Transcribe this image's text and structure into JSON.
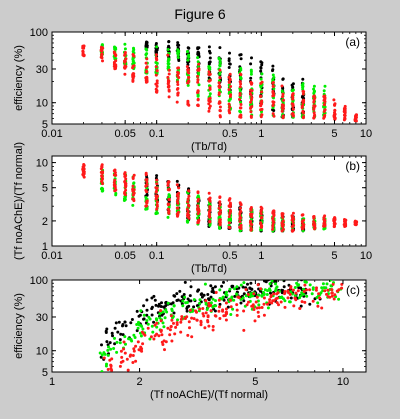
{
  "figure": {
    "title": "Figure 6"
  },
  "colors": {
    "black": "#000000",
    "green": "#00ee00",
    "red": "#ff1a1a",
    "background": "#cccccc",
    "axes_bg": "#ffffff"
  },
  "chart_data": [
    {
      "id": "a",
      "type": "scatter",
      "panel_label": "(a)",
      "xlabel": "(Tb/Td)",
      "ylabel": "efficiency (%)",
      "xscale": "log",
      "yscale": "log",
      "xlim": [
        0.01,
        10
      ],
      "ylim": [
        5,
        100
      ],
      "xticks": [
        0.01,
        0.05,
        0.1,
        0.5,
        1,
        5,
        10
      ],
      "xtick_labels": [
        "0.01",
        "0.05",
        "0.1",
        "0.5",
        "1",
        "5",
        "10"
      ],
      "yticks": [
        5,
        10,
        30,
        100
      ],
      "ytick_labels": [
        "5",
        "10",
        "30",
        "100"
      ],
      "x_columns": [
        0.02,
        0.03,
        0.04,
        0.05,
        0.06,
        0.08,
        0.1,
        0.13,
        0.16,
        0.2,
        0.25,
        0.32,
        0.4,
        0.5,
        0.63,
        0.8,
        1.0,
        1.3,
        1.6,
        2.0,
        2.5,
        3.2,
        4.0,
        5.0,
        6.3,
        8.0
      ],
      "series": [
        {
          "color": "black",
          "ranges": [
            [
              0.08,
              60,
              75
            ],
            [
              0.1,
              45,
              78
            ],
            [
              0.13,
              40,
              75
            ],
            [
              0.16,
              35,
              72
            ],
            [
              0.2,
              30,
              70
            ],
            [
              0.25,
              25,
              70
            ],
            [
              0.32,
              20,
              68
            ],
            [
              0.4,
              15,
              65
            ],
            [
              0.5,
              12,
              60
            ],
            [
              0.63,
              10,
              55
            ],
            [
              0.8,
              9,
              48
            ],
            [
              1.0,
              8,
              40
            ],
            [
              1.3,
              7,
              35
            ],
            [
              1.6,
              6,
              30
            ],
            [
              2.0,
              6,
              25
            ],
            [
              2.5,
              6,
              22
            ]
          ]
        },
        {
          "color": "green",
          "ranges": [
            [
              0.03,
              45,
              70
            ],
            [
              0.04,
              40,
              70
            ],
            [
              0.05,
              35,
              68
            ],
            [
              0.06,
              30,
              66
            ],
            [
              0.08,
              25,
              65
            ],
            [
              0.1,
              25,
              62
            ],
            [
              0.13,
              20,
              60
            ],
            [
              0.16,
              18,
              58
            ],
            [
              0.2,
              15,
              55
            ],
            [
              0.25,
              12,
              52
            ],
            [
              0.32,
              10,
              48
            ],
            [
              0.4,
              9,
              45
            ],
            [
              0.5,
              8,
              40
            ],
            [
              0.63,
              7,
              35
            ],
            [
              0.8,
              6,
              30
            ],
            [
              1.0,
              6,
              28
            ],
            [
              1.3,
              6,
              25
            ],
            [
              1.6,
              6,
              22
            ],
            [
              2.0,
              6,
              20
            ],
            [
              2.5,
              6,
              20
            ],
            [
              3.2,
              6,
              18
            ],
            [
              4.0,
              6,
              20
            ]
          ]
        },
        {
          "color": "red",
          "ranges": [
            [
              0.02,
              45,
              65
            ],
            [
              0.03,
              38,
              62
            ],
            [
              0.04,
              30,
              60
            ],
            [
              0.05,
              25,
              58
            ],
            [
              0.06,
              20,
              55
            ],
            [
              0.08,
              17,
              52
            ],
            [
              0.1,
              14,
              50
            ],
            [
              0.13,
              12,
              48
            ],
            [
              0.16,
              10,
              45
            ],
            [
              0.2,
              9,
              42
            ],
            [
              0.25,
              8,
              40
            ],
            [
              0.32,
              7,
              38
            ],
            [
              0.4,
              6,
              35
            ],
            [
              0.5,
              6,
              30
            ],
            [
              0.63,
              6,
              28
            ],
            [
              0.8,
              6,
              25
            ],
            [
              1.0,
              6,
              22
            ],
            [
              1.3,
              6,
              20
            ],
            [
              1.6,
              6,
              18
            ],
            [
              2.0,
              6,
              16
            ],
            [
              2.5,
              6,
              15
            ],
            [
              3.2,
              6,
              14
            ],
            [
              4.0,
              6,
              13
            ],
            [
              5.0,
              5.5,
              11
            ],
            [
              6.3,
              5.5,
              9
            ],
            [
              8.0,
              5.5,
              7
            ]
          ]
        }
      ]
    },
    {
      "id": "b",
      "type": "scatter",
      "panel_label": "(b)",
      "xlabel": "(Tb/Td)",
      "ylabel": "(Tf noAChE)/(Tf normal)",
      "xscale": "log",
      "yscale": "log",
      "xlim": [
        0.01,
        10
      ],
      "ylim": [
        1,
        12
      ],
      "xticks": [
        0.01,
        0.05,
        0.1,
        0.5,
        1,
        5,
        10
      ],
      "xtick_labels": [
        "0.01",
        "0.05",
        "0.1",
        "0.5",
        "1",
        "5",
        "10"
      ],
      "yticks": [
        1,
        2,
        5,
        10
      ],
      "ytick_labels": [
        "1",
        "2",
        "5",
        "10"
      ],
      "series": [
        {
          "color": "black",
          "ranges": [
            [
              0.08,
              3.5,
              7.5
            ],
            [
              0.1,
              3.0,
              7.0
            ],
            [
              0.13,
              2.6,
              6.5
            ],
            [
              0.16,
              2.3,
              6.0
            ],
            [
              0.2,
              2.0,
              5.0
            ],
            [
              0.25,
              1.8,
              4.5
            ],
            [
              0.32,
              1.7,
              4.0
            ],
            [
              0.4,
              1.6,
              3.7
            ],
            [
              0.5,
              1.6,
              3.4
            ],
            [
              0.63,
              1.5,
              3.2
            ],
            [
              0.8,
              1.5,
              3.0
            ],
            [
              1.0,
              1.5,
              2.9
            ],
            [
              1.3,
              1.5,
              2.6
            ],
            [
              1.6,
              1.5,
              2.4
            ],
            [
              2.0,
              1.5,
              2.3
            ],
            [
              2.5,
              1.5,
              2.2
            ]
          ]
        },
        {
          "color": "green",
          "ranges": [
            [
              0.03,
              4.5,
              8.5
            ],
            [
              0.04,
              4.0,
              8.0
            ],
            [
              0.05,
              3.5,
              7.5
            ],
            [
              0.06,
              3.0,
              7.0
            ],
            [
              0.08,
              2.7,
              6.5
            ],
            [
              0.1,
              2.4,
              6.0
            ],
            [
              0.13,
              2.2,
              5.5
            ],
            [
              0.16,
              2.0,
              5.0
            ],
            [
              0.2,
              1.9,
              4.5
            ],
            [
              0.25,
              1.8,
              4.2
            ],
            [
              0.32,
              1.7,
              3.8
            ],
            [
              0.4,
              1.6,
              3.5
            ],
            [
              0.5,
              1.6,
              3.2
            ],
            [
              0.63,
              1.5,
              3.0
            ],
            [
              0.8,
              1.5,
              2.8
            ],
            [
              1.0,
              1.5,
              2.6
            ],
            [
              1.3,
              1.5,
              2.4
            ],
            [
              1.6,
              1.5,
              2.3
            ],
            [
              2.0,
              1.5,
              2.3
            ],
            [
              2.5,
              1.5,
              2.2
            ],
            [
              3.2,
              1.5,
              2.2
            ],
            [
              4.0,
              1.6,
              2.2
            ]
          ]
        },
        {
          "color": "red",
          "ranges": [
            [
              0.02,
              6.5,
              10
            ],
            [
              0.03,
              5.5,
              9.5
            ],
            [
              0.04,
              4.5,
              9.0
            ],
            [
              0.05,
              4.0,
              8.5
            ],
            [
              0.06,
              3.5,
              8.0
            ],
            [
              0.08,
              3.0,
              7.5
            ],
            [
              0.1,
              2.7,
              7.0
            ],
            [
              0.13,
              2.4,
              6.5
            ],
            [
              0.16,
              2.2,
              6.0
            ],
            [
              0.2,
              2.0,
              5.5
            ],
            [
              0.25,
              1.9,
              5.0
            ],
            [
              0.32,
              1.8,
              4.5
            ],
            [
              0.4,
              1.7,
              4.2
            ],
            [
              0.5,
              1.6,
              3.8
            ],
            [
              0.63,
              1.6,
              3.5
            ],
            [
              0.8,
              1.5,
              3.2
            ],
            [
              1.0,
              1.5,
              3.0
            ],
            [
              1.3,
              1.5,
              2.8
            ],
            [
              1.6,
              1.5,
              2.6
            ],
            [
              2.0,
              1.5,
              2.5
            ],
            [
              2.5,
              1.6,
              2.4
            ],
            [
              3.2,
              1.6,
              2.3
            ],
            [
              4.0,
              1.7,
              2.3
            ],
            [
              5.0,
              1.7,
              2.2
            ],
            [
              6.3,
              1.7,
              2.1
            ],
            [
              8.0,
              1.8,
              2.0
            ]
          ]
        }
      ]
    },
    {
      "id": "c",
      "type": "scatter",
      "panel_label": "(c)",
      "xlabel": "(Tf noAChE)/(Tf normal)",
      "ylabel": "efficiency (%)",
      "xscale": "log",
      "yscale": "log",
      "xlim": [
        1,
        12
      ],
      "ylim": [
        5,
        100
      ],
      "xticks": [
        1,
        2,
        5,
        10
      ],
      "xtick_labels": [
        "1",
        "2",
        "5",
        "10"
      ],
      "yticks": [
        5,
        10,
        30,
        100
      ],
      "ytick_labels": [
        "5",
        "10",
        "30",
        "100"
      ],
      "series": [
        {
          "color": "black",
          "curve": [
            [
              1.45,
              8
            ],
            [
              1.6,
              15
            ],
            [
              1.8,
              22
            ],
            [
              2.0,
              30
            ],
            [
              2.3,
              40
            ],
            [
              2.7,
              50
            ],
            [
              3.2,
              58
            ],
            [
              4.0,
              65
            ],
            [
              5.0,
              70
            ],
            [
              6.5,
              73
            ],
            [
              8.0,
              74
            ]
          ],
          "spread": 0.22
        },
        {
          "color": "green",
          "curve": [
            [
              1.5,
              7
            ],
            [
              1.7,
              12
            ],
            [
              2.0,
              20
            ],
            [
              2.3,
              27
            ],
            [
              2.7,
              36
            ],
            [
              3.2,
              45
            ],
            [
              4.0,
              55
            ],
            [
              5.0,
              62
            ],
            [
              6.5,
              68
            ],
            [
              8.0,
              71
            ],
            [
              9.5,
              72
            ]
          ],
          "spread": 0.22
        },
        {
          "color": "red",
          "curve": [
            [
              1.55,
              6
            ],
            [
              1.8,
              9
            ],
            [
              2.1,
              13
            ],
            [
              2.5,
              19
            ],
            [
              3.0,
              27
            ],
            [
              3.6,
              35
            ],
            [
              4.5,
              45
            ],
            [
              5.5,
              53
            ],
            [
              7.0,
              60
            ],
            [
              8.5,
              64
            ],
            [
              10.0,
              66
            ]
          ],
          "spread": 0.25
        }
      ]
    }
  ]
}
